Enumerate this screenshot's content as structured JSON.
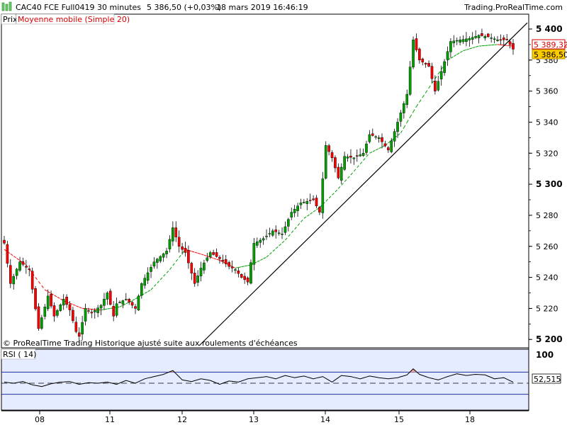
{
  "header": {
    "instrument": "CAC40 FCE Full0419",
    "interval": "30 minutes",
    "last": "5 386,50 (+0,03%)",
    "datetime": "18 mars 2019 16:46:19",
    "brand": "Trading.ProRealTime.com"
  },
  "legend": {
    "price": "Prix",
    "ma": "Moyenne mobile (Simple 20)"
  },
  "price_badges": {
    "ma_value": "5 389,32",
    "last_value": "5 386,50"
  },
  "copyright": "© ProRealTime Trading  Historique ajusté suite aux roulements d'échéances",
  "rsi": {
    "label": "RSI ( 14)",
    "top_label": "100",
    "value_badge": "52,515"
  },
  "colors": {
    "up": "#00a000",
    "down": "#ff0000",
    "ma": "#00a000",
    "rsi_bg": "#e6ecff",
    "badge_ma": "#d80000",
    "badge_last": "#ffcc00"
  },
  "chart_data": [
    {
      "type": "candlestick",
      "title": "CAC40 FCE Full0419 30 minutes",
      "x_ticks": [
        "08",
        "11",
        "12",
        "13",
        "14",
        "15",
        "18"
      ],
      "y_ticks": [
        "5 200",
        "5 220",
        "5 240",
        "5 260",
        "5 280",
        "5 300",
        "5 320",
        "5 340",
        "5 360",
        "5 380",
        "5 400"
      ],
      "ylim": [
        5196,
        5405
      ],
      "trend_line": [
        [
          0.05,
          5196
        ],
        [
          1,
          5404
        ]
      ],
      "close_anchors": [
        [
          0,
          5262
        ],
        [
          2,
          5236
        ],
        [
          5,
          5250
        ],
        [
          8,
          5245
        ],
        [
          11,
          5207
        ],
        [
          14,
          5228
        ],
        [
          16,
          5215
        ],
        [
          19,
          5226
        ],
        [
          21,
          5219
        ],
        [
          23,
          5205
        ],
        [
          24,
          5202
        ],
        [
          26,
          5220
        ],
        [
          28,
          5217
        ],
        [
          31,
          5222
        ],
        [
          33,
          5230
        ],
        [
          35,
          5215
        ],
        [
          36,
          5223
        ],
        [
          39,
          5226
        ],
        [
          42,
          5220
        ],
        [
          44,
          5236
        ],
        [
          48,
          5250
        ],
        [
          52,
          5257
        ],
        [
          54,
          5272
        ],
        [
          56,
          5260
        ],
        [
          58,
          5256
        ],
        [
          61,
          5236
        ],
        [
          63,
          5246
        ],
        [
          66,
          5256
        ],
        [
          69,
          5252
        ],
        [
          72,
          5247
        ],
        [
          74,
          5245
        ],
        [
          76,
          5240
        ],
        [
          78,
          5237
        ],
        [
          80,
          5262
        ],
        [
          83,
          5265
        ],
        [
          86,
          5270
        ],
        [
          89,
          5268
        ],
        [
          92,
          5282
        ],
        [
          95,
          5288
        ],
        [
          99,
          5290
        ],
        [
          101,
          5282
        ],
        [
          103,
          5325
        ],
        [
          105,
          5317
        ],
        [
          107,
          5304
        ],
        [
          109,
          5318
        ],
        [
          112,
          5317
        ],
        [
          115,
          5320
        ],
        [
          117,
          5332
        ],
        [
          120,
          5330
        ],
        [
          123,
          5322
        ],
        [
          126,
          5340
        ],
        [
          129,
          5358
        ],
        [
          131,
          5393
        ],
        [
          133,
          5380
        ],
        [
          136,
          5376
        ],
        [
          138,
          5360
        ],
        [
          141,
          5379
        ],
        [
          143,
          5392
        ],
        [
          146,
          5393
        ],
        [
          149,
          5394
        ],
        [
          152,
          5396
        ],
        [
          155,
          5395
        ],
        [
          158,
          5393
        ],
        [
          161,
          5393
        ],
        [
          163,
          5387
        ]
      ],
      "ma20_anchors": [
        [
          0,
          5258
        ],
        [
          7,
          5248
        ],
        [
          13,
          5232
        ],
        [
          19,
          5225
        ],
        [
          25,
          5220
        ],
        [
          31,
          5219
        ],
        [
          37,
          5221
        ],
        [
          41,
          5225
        ],
        [
          47,
          5232
        ],
        [
          53,
          5245
        ],
        [
          58,
          5258
        ],
        [
          63,
          5255
        ],
        [
          69,
          5251
        ],
        [
          74,
          5246
        ],
        [
          79,
          5248
        ],
        [
          84,
          5253
        ],
        [
          90,
          5264
        ],
        [
          96,
          5278
        ],
        [
          101,
          5285
        ],
        [
          106,
          5295
        ],
        [
          111,
          5306
        ],
        [
          117,
          5320
        ],
        [
          122,
          5325
        ],
        [
          127,
          5333
        ],
        [
          132,
          5350
        ],
        [
          137,
          5365
        ],
        [
          142,
          5380
        ],
        [
          147,
          5386
        ],
        [
          152,
          5389
        ],
        [
          158,
          5390
        ],
        [
          163,
          5389
        ]
      ]
    },
    {
      "type": "line",
      "title": "RSI ( 14)",
      "ylim": [
        0,
        100
      ],
      "levels": [
        70,
        30
      ],
      "mid": 50,
      "last_value": 52.515,
      "anchors": [
        [
          0,
          52
        ],
        [
          3,
          50
        ],
        [
          6,
          53
        ],
        [
          9,
          47
        ],
        [
          12,
          44
        ],
        [
          15,
          49
        ],
        [
          18,
          52
        ],
        [
          21,
          53
        ],
        [
          24,
          48
        ],
        [
          27,
          51
        ],
        [
          30,
          50
        ],
        [
          33,
          52
        ],
        [
          36,
          48
        ],
        [
          39,
          55
        ],
        [
          42,
          50
        ],
        [
          45,
          58
        ],
        [
          48,
          62
        ],
        [
          51,
          66
        ],
        [
          54,
          73
        ],
        [
          57,
          56
        ],
        [
          60,
          53
        ],
        [
          63,
          58
        ],
        [
          66,
          55
        ],
        [
          69,
          48
        ],
        [
          72,
          54
        ],
        [
          75,
          52
        ],
        [
          78,
          58
        ],
        [
          81,
          60
        ],
        [
          84,
          62
        ],
        [
          87,
          58
        ],
        [
          90,
          64
        ],
        [
          93,
          60
        ],
        [
          96,
          63
        ],
        [
          99,
          58
        ],
        [
          102,
          62
        ],
        [
          105,
          52
        ],
        [
          108,
          64
        ],
        [
          111,
          62
        ],
        [
          114,
          58
        ],
        [
          117,
          63
        ],
        [
          120,
          60
        ],
        [
          123,
          58
        ],
        [
          126,
          60
        ],
        [
          129,
          65
        ],
        [
          131,
          76
        ],
        [
          133,
          66
        ],
        [
          136,
          60
        ],
        [
          139,
          56
        ],
        [
          142,
          62
        ],
        [
          145,
          67
        ],
        [
          148,
          64
        ],
        [
          151,
          66
        ],
        [
          154,
          65
        ],
        [
          157,
          58
        ],
        [
          160,
          60
        ],
        [
          163,
          52
        ]
      ]
    }
  ]
}
